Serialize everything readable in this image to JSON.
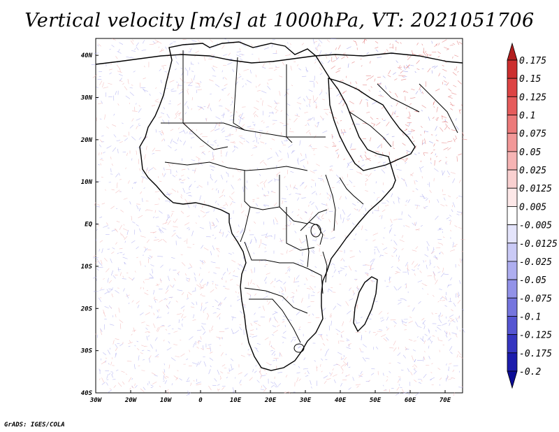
{
  "title": "Vertical velocity [m/s] at 1000hPa, VT: 2021051706",
  "footer": "GrADS: IGES/COLA",
  "map": {
    "lon_labels": [
      "30W",
      "20W",
      "10W",
      "0",
      "10E",
      "20E",
      "30E",
      "40E",
      "50E",
      "60E",
      "70E"
    ],
    "lat_labels": [
      "40N",
      "30N",
      "20N",
      "10N",
      "EQ",
      "10S",
      "20S",
      "30S",
      "40S"
    ],
    "lon_values": [
      -30,
      -20,
      -10,
      0,
      10,
      20,
      30,
      40,
      50,
      60,
      70
    ],
    "lat_values": [
      40,
      30,
      20,
      10,
      0,
      -10,
      -20,
      -30,
      -40
    ],
    "lon_range": [
      -30,
      75
    ],
    "lat_range": [
      -40,
      44
    ]
  },
  "colorbar": {
    "labels": [
      "0.175",
      "0.15",
      "0.125",
      "0.1",
      "0.075",
      "0.05",
      "0.025",
      "0.0125",
      "0.005",
      "-0.005",
      "-0.0125",
      "-0.025",
      "-0.05",
      "-0.075",
      "-0.1",
      "-0.125",
      "-0.175",
      "-0.2"
    ],
    "colors": [
      "#b21e1e",
      "#cc2e2e",
      "#dd4444",
      "#e65c5c",
      "#ec7a7a",
      "#f29898",
      "#f6b4b4",
      "#f9d0d0",
      "#fde8e8",
      "#ffffff",
      "#e4e4fb",
      "#cacaf6",
      "#aeaef0",
      "#9292e8",
      "#7575de",
      "#5555d2",
      "#3535c0",
      "#1c1cac",
      "#0c0c96"
    ]
  }
}
